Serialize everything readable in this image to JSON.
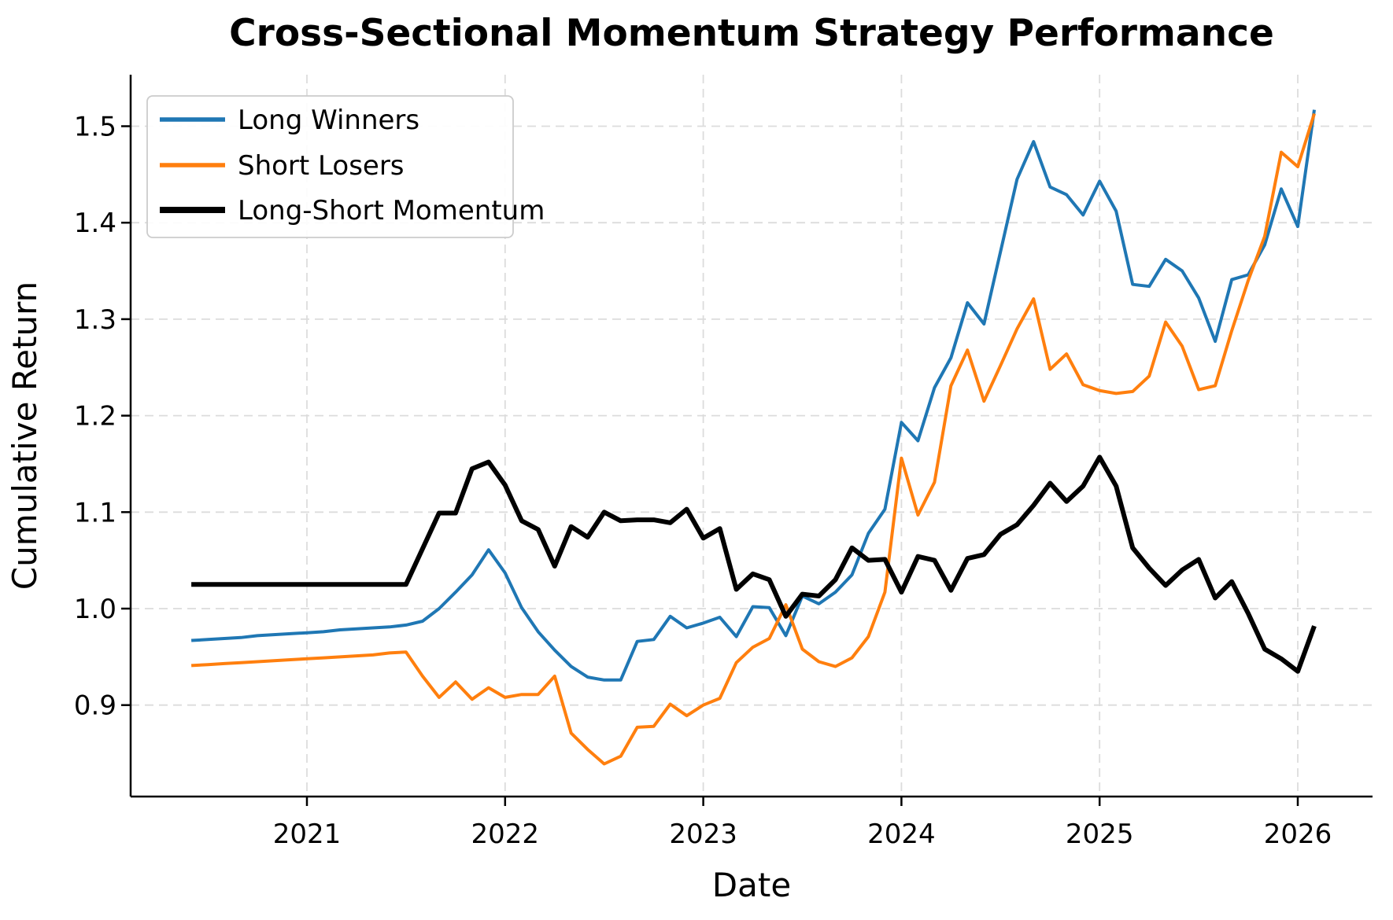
{
  "chart_data": {
    "type": "line",
    "title": "Cross-Sectional Momentum Strategy Performance",
    "xlabel": "Date",
    "ylabel": "Cumulative Return",
    "grid": true,
    "grid_style": "dashed",
    "legend_position": "upper left",
    "background_color": "#ffffff",
    "axis_color": "#000000",
    "grid_color": "#dcdcdc",
    "x_tick_labels": [
      "2021",
      "2022",
      "2023",
      "2024",
      "2025",
      "2026"
    ],
    "x_tick_years": [
      2021,
      2022,
      2023,
      2024,
      2025,
      2026
    ],
    "y_tick_labels": [
      "0.9",
      "1.0",
      "1.1",
      "1.2",
      "1.3",
      "1.4",
      "1.5"
    ],
    "y_ticks": [
      0.9,
      1.0,
      1.1,
      1.2,
      1.3,
      1.4,
      1.5
    ],
    "xlim_years": [
      2020.11,
      2026.377
    ],
    "ylim": [
      0.805,
      1.553
    ],
    "dates": [
      "2020-05",
      "2020-06",
      "2020-07",
      "2020-08",
      "2020-09",
      "2020-10",
      "2020-11",
      "2020-12",
      "2021-01",
      "2021-02",
      "2021-03",
      "2021-04",
      "2021-05",
      "2021-06",
      "2021-07",
      "2021-08",
      "2021-09",
      "2021-10",
      "2021-11",
      "2021-12",
      "2022-01",
      "2022-02",
      "2022-03",
      "2022-04",
      "2022-05",
      "2022-06",
      "2022-07",
      "2022-08",
      "2022-09",
      "2022-10",
      "2022-11",
      "2022-12",
      "2023-01",
      "2023-02",
      "2023-03",
      "2023-04",
      "2023-05",
      "2023-06",
      "2023-07",
      "2023-08",
      "2023-09",
      "2023-10",
      "2023-11",
      "2023-12",
      "2024-01",
      "2024-02",
      "2024-03",
      "2024-04",
      "2024-05",
      "2024-06",
      "2024-07",
      "2024-08",
      "2024-09",
      "2024-10",
      "2024-11",
      "2024-12",
      "2025-01",
      "2025-02",
      "2025-03",
      "2025-04",
      "2025-05",
      "2025-06",
      "2025-07",
      "2025-08",
      "2025-09",
      "2025-10",
      "2025-11",
      "2025-12",
      "2026-01"
    ],
    "series": [
      {
        "name": "Long Winners",
        "color": "#1f77b4",
        "line_width": 4,
        "values": [
          0.967,
          0.968,
          0.969,
          0.97,
          0.972,
          0.973,
          0.974,
          0.975,
          0.976,
          0.978,
          0.979,
          0.98,
          0.981,
          0.983,
          0.987,
          1.0,
          1.017,
          1.035,
          1.061,
          1.037,
          1.001,
          0.976,
          0.957,
          0.94,
          0.929,
          0.926,
          0.926,
          0.966,
          0.968,
          0.992,
          0.98,
          0.985,
          0.991,
          0.971,
          1.002,
          1.001,
          0.972,
          1.013,
          1.005,
          1.017,
          1.035,
          1.078,
          1.103,
          1.193,
          1.174,
          1.229,
          1.26,
          1.317,
          1.295,
          1.37,
          1.445,
          1.484,
          1.437,
          1.429,
          1.408,
          1.443,
          1.412,
          1.336,
          1.334,
          1.362,
          1.35,
          1.322,
          1.277,
          1.341,
          1.346,
          1.377,
          1.435,
          1.396,
          1.517
        ]
      },
      {
        "name": "Short Losers",
        "color": "#ff7f0e",
        "line_width": 4,
        "values": [
          0.941,
          0.942,
          0.943,
          0.944,
          0.945,
          0.946,
          0.947,
          0.948,
          0.949,
          0.95,
          0.951,
          0.952,
          0.954,
          0.955,
          0.93,
          0.908,
          0.924,
          0.906,
          0.918,
          0.908,
          0.911,
          0.911,
          0.93,
          0.871,
          0.854,
          0.839,
          0.847,
          0.877,
          0.878,
          0.901,
          0.889,
          0.9,
          0.907,
          0.944,
          0.96,
          0.969,
          1.004,
          0.958,
          0.945,
          0.94,
          0.949,
          0.971,
          1.017,
          1.156,
          1.097,
          1.131,
          1.231,
          1.268,
          1.215,
          1.252,
          1.29,
          1.321,
          1.248,
          1.264,
          1.232,
          1.226,
          1.223,
          1.225,
          1.241,
          1.297,
          1.272,
          1.227,
          1.231,
          1.288,
          1.34,
          1.386,
          1.473,
          1.458,
          1.513
        ]
      },
      {
        "name": "Long-Short Momentum",
        "color": "#000000",
        "line_width": 6,
        "values": [
          1.025,
          1.025,
          1.025,
          1.025,
          1.025,
          1.025,
          1.025,
          1.025,
          1.025,
          1.025,
          1.025,
          1.025,
          1.025,
          1.025,
          1.062,
          1.099,
          1.099,
          1.145,
          1.152,
          1.128,
          1.091,
          1.082,
          1.044,
          1.085,
          1.074,
          1.1,
          1.091,
          1.092,
          1.092,
          1.089,
          1.103,
          1.073,
          1.083,
          1.02,
          1.036,
          1.03,
          0.992,
          1.015,
          1.013,
          1.03,
          1.063,
          1.05,
          1.051,
          1.017,
          1.054,
          1.05,
          1.019,
          1.052,
          1.056,
          1.077,
          1.087,
          1.107,
          1.13,
          1.111,
          1.127,
          1.157,
          1.127,
          1.063,
          1.042,
          1.024,
          1.04,
          1.051,
          1.011,
          1.028,
          0.995,
          0.958,
          0.948,
          0.935,
          0.982
        ]
      }
    ]
  }
}
